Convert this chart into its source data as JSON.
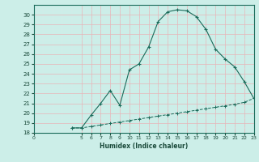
{
  "xlabel": "Humidex (Indice chaleur)",
  "ylabel": "",
  "xlim": [
    0,
    23
  ],
  "ylim": [
    18,
    31
  ],
  "yticks": [
    18,
    19,
    20,
    21,
    22,
    23,
    24,
    25,
    26,
    27,
    28,
    29,
    30
  ],
  "xticks": [
    0,
    5,
    6,
    7,
    8,
    9,
    10,
    11,
    12,
    13,
    14,
    15,
    16,
    17,
    18,
    19,
    20,
    21,
    22,
    23
  ],
  "bg_color": "#cceee8",
  "grid_major_color": "#e8b4b8",
  "grid_minor_color": "#daeae8",
  "line_color": "#1a6b5a",
  "curve_x": [
    4,
    5,
    6,
    7,
    8,
    9,
    10,
    11,
    12,
    13,
    14,
    15,
    16,
    17,
    18,
    19,
    20,
    21,
    22,
    23
  ],
  "curve_y": [
    18.5,
    18.5,
    19.8,
    21.0,
    22.3,
    20.8,
    24.4,
    25.0,
    26.7,
    29.3,
    30.3,
    30.5,
    30.4,
    29.8,
    28.5,
    26.5,
    25.5,
    24.7,
    23.2,
    21.5
  ],
  "baseline_x": [
    4,
    5,
    6,
    7,
    8,
    9,
    10,
    11,
    12,
    13,
    14,
    15,
    16,
    17,
    18,
    19,
    20,
    21,
    22,
    23
  ],
  "baseline_y": [
    18.5,
    18.5,
    18.65,
    18.8,
    18.95,
    19.1,
    19.25,
    19.4,
    19.55,
    19.7,
    19.85,
    20.0,
    20.15,
    20.3,
    20.45,
    20.6,
    20.75,
    20.9,
    21.1,
    21.5
  ]
}
